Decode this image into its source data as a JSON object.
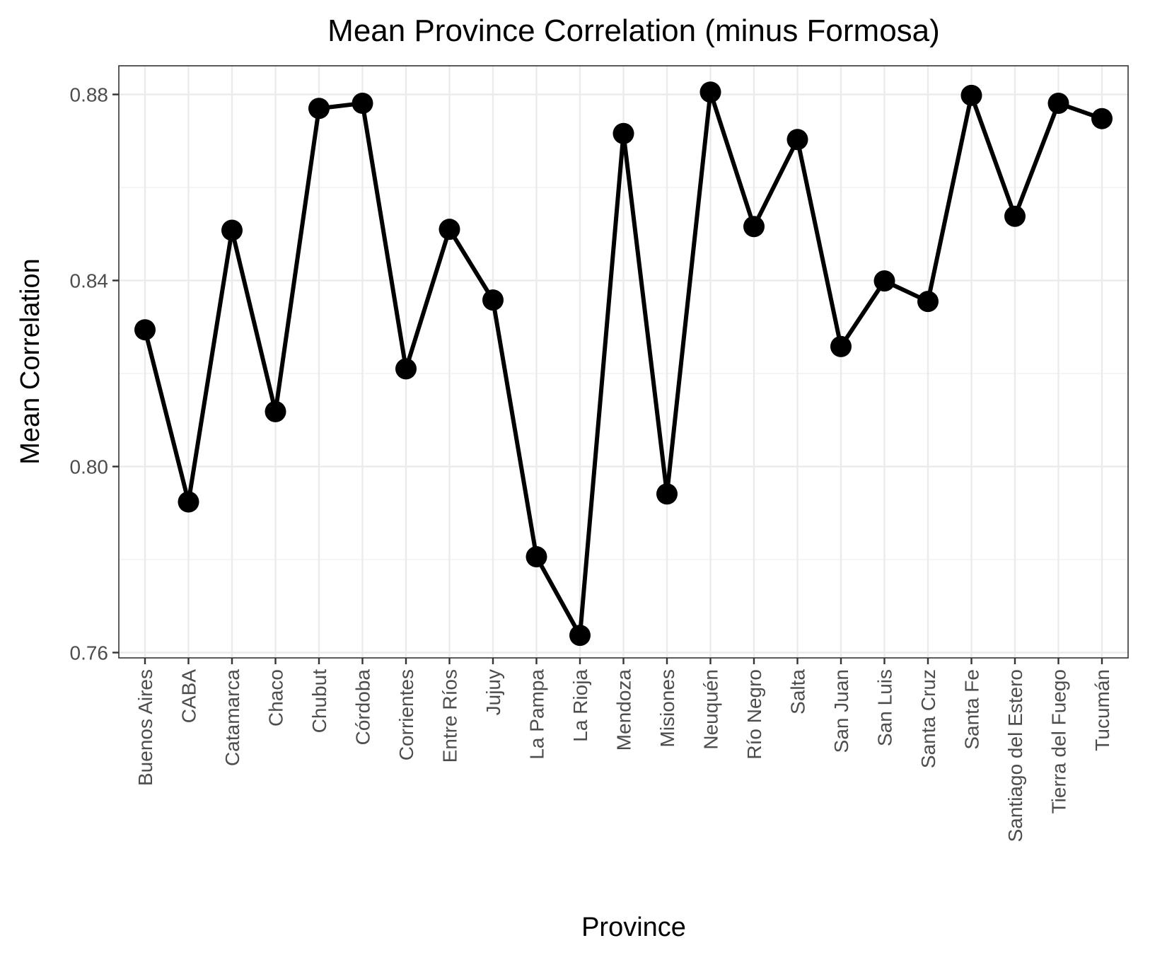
{
  "chart_data": {
    "type": "line",
    "title": "Mean Province Correlation (minus Formosa)",
    "xlabel": "Province",
    "ylabel": "Mean Correlation",
    "ylim": [
      0.755,
      0.887
    ],
    "yticks": [
      0.76,
      0.8,
      0.84,
      0.88
    ],
    "ytick_labels": [
      "0.76",
      "0.80",
      "0.84",
      "0.88"
    ],
    "grid": true,
    "legend": "none",
    "categories": [
      "Buenos Aires",
      "CABA",
      "Catamarca",
      "Chaco",
      "Chubut",
      "Córdoba",
      "Corrientes",
      "Entre Ríos",
      "Jujuy",
      "La Pampa",
      "La Rioja",
      "Mendoza",
      "Misiones",
      "Neuquén",
      "Río Negro",
      "Salta",
      "San Juan",
      "San Luis",
      "Santa Cruz",
      "Santa Fe",
      "Santiago del Estero",
      "Tierra del Fuego",
      "Tucumán"
    ],
    "series": [
      {
        "values": [
          0.8294,
          0.7924,
          0.8508,
          0.8118,
          0.877,
          0.8781,
          0.821,
          0.851,
          0.8358,
          0.7806,
          0.7637,
          0.8716,
          0.7941,
          0.8805,
          0.8516,
          0.8703,
          0.8258,
          0.8399,
          0.8355,
          0.8798,
          0.8538,
          0.8781,
          0.8748
        ],
        "color": "#000000"
      }
    ]
  }
}
